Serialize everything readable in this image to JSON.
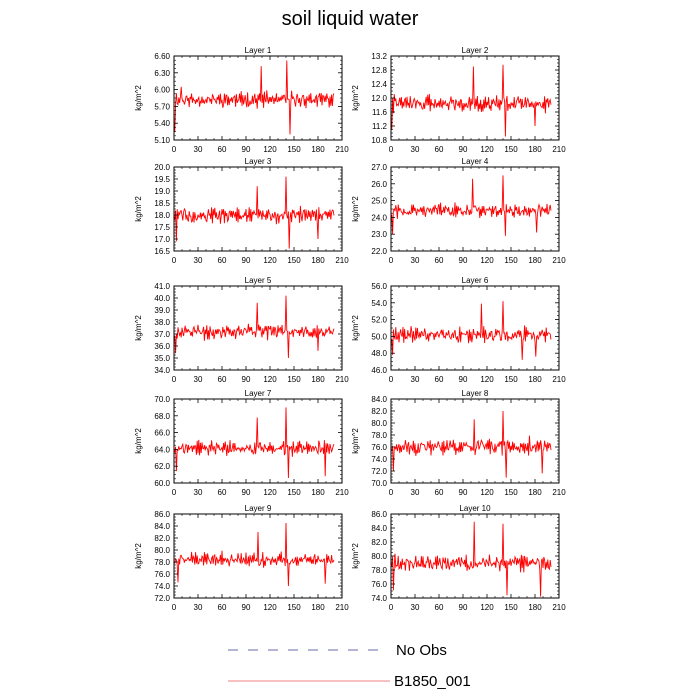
{
  "title": "soil liquid water",
  "legend": [
    {
      "label": "No Obs",
      "color": "#6a6aa8",
      "style": "dashed"
    },
    {
      "label": "B1850_001",
      "color": "#f08080",
      "style": "solid"
    }
  ],
  "chart_data": [
    {
      "type": "line",
      "title": "Layer 1",
      "ylabel": "kg/m^2",
      "xlim": [
        0,
        210
      ],
      "ylim": [
        5.1,
        6.6
      ],
      "xticks": [
        "0",
        "30",
        "60",
        "90",
        "120",
        "150",
        "180",
        "210"
      ],
      "yticks": [
        "5.10",
        "5.40",
        "5.70",
        "6.00",
        "6.30",
        "6.60"
      ],
      "series": [
        {
          "color": "#ff0000",
          "x_start": 1,
          "x_end": 200,
          "seed": 11,
          "mean": 5.82,
          "amp": 0.18,
          "spikes": [
            [
              1,
              5.25
            ],
            [
              9,
              6.05
            ],
            [
              109,
              6.42
            ],
            [
              141,
              6.52
            ],
            [
              145,
              5.2
            ]
          ]
        }
      ]
    },
    {
      "type": "line",
      "title": "Layer 2",
      "ylabel": "kg/m^2",
      "xlim": [
        0,
        210
      ],
      "ylim": [
        10.8,
        13.2
      ],
      "xticks": [
        "0",
        "30",
        "60",
        "90",
        "120",
        "150",
        "180",
        "210"
      ],
      "yticks": [
        "10.8",
        "11.2",
        "11.6",
        "12.0",
        "12.4",
        "12.8",
        "13.2"
      ],
      "series": [
        {
          "color": "#ff0000",
          "x_start": 1,
          "x_end": 200,
          "seed": 22,
          "mean": 11.85,
          "amp": 0.3,
          "spikes": [
            [
              1,
              11.1
            ],
            [
              103,
              12.9
            ],
            [
              140,
              12.95
            ],
            [
              143,
              10.9
            ],
            [
              180,
              11.2
            ]
          ]
        }
      ]
    },
    {
      "type": "line",
      "title": "Layer 3",
      "ylabel": "kg/m^2",
      "xlim": [
        0,
        210
      ],
      "ylim": [
        16.5,
        20.0
      ],
      "xticks": [
        "0",
        "30",
        "60",
        "90",
        "120",
        "150",
        "180",
        "210"
      ],
      "yticks": [
        "16.5",
        "17.0",
        "17.5",
        "18.0",
        "18.5",
        "19.0",
        "19.5",
        "20.0"
      ],
      "series": [
        {
          "color": "#ff0000",
          "x_start": 1,
          "x_end": 200,
          "seed": 33,
          "mean": 18.0,
          "amp": 0.45,
          "spikes": [
            [
              3,
              16.9
            ],
            [
              104,
              19.2
            ],
            [
              140,
              19.6
            ],
            [
              144,
              16.6
            ],
            [
              180,
              17.0
            ]
          ]
        }
      ]
    },
    {
      "type": "line",
      "title": "Layer 4",
      "ylabel": "kg/m^2",
      "xlim": [
        0,
        210
      ],
      "ylim": [
        22.0,
        27.0
      ],
      "xticks": [
        "0",
        "30",
        "60",
        "90",
        "120",
        "150",
        "180",
        "210"
      ],
      "yticks": [
        "22.0",
        "23.0",
        "24.0",
        "25.0",
        "26.0",
        "27.0"
      ],
      "series": [
        {
          "color": "#ff0000",
          "x_start": 1,
          "x_end": 200,
          "seed": 44,
          "mean": 24.4,
          "amp": 0.55,
          "spikes": [
            [
              2,
              23.0
            ],
            [
              102,
              26.3
            ],
            [
              140,
              26.5
            ],
            [
              143,
              22.9
            ],
            [
              182,
              23.1
            ]
          ]
        }
      ]
    },
    {
      "type": "line",
      "title": "Layer 5",
      "ylabel": "kg/m^2",
      "xlim": [
        0,
        210
      ],
      "ylim": [
        34.0,
        41.0
      ],
      "xticks": [
        "0",
        "30",
        "60",
        "90",
        "120",
        "150",
        "180",
        "210"
      ],
      "yticks": [
        "34.0",
        "35.0",
        "36.0",
        "37.0",
        "38.0",
        "39.0",
        "40.0",
        "41.0"
      ],
      "series": [
        {
          "color": "#ff0000",
          "x_start": 1,
          "x_end": 200,
          "seed": 55,
          "mean": 37.2,
          "amp": 0.8,
          "spikes": [
            [
              2,
              35.4
            ],
            [
              104,
              39.6
            ],
            [
              140,
              40.2
            ],
            [
              143,
              35.0
            ],
            [
              180,
              35.6
            ]
          ]
        }
      ]
    },
    {
      "type": "line",
      "title": "Layer 6",
      "ylabel": "kg/m^2",
      "xlim": [
        0,
        210
      ],
      "ylim": [
        46.0,
        56.0
      ],
      "xticks": [
        "0",
        "30",
        "60",
        "90",
        "120",
        "150",
        "180",
        "210"
      ],
      "yticks": [
        "46.0",
        "48.0",
        "50.0",
        "52.0",
        "54.0",
        "56.0"
      ],
      "series": [
        {
          "color": "#ff0000",
          "x_start": 1,
          "x_end": 200,
          "seed": 66,
          "mean": 50.2,
          "amp": 1.2,
          "spikes": [
            [
              2,
              47.8
            ],
            [
              113,
              53.9
            ],
            [
              140,
              54.2
            ],
            [
              164,
              47.2
            ],
            [
              181,
              47.6
            ]
          ]
        }
      ]
    },
    {
      "type": "line",
      "title": "Layer 7",
      "ylabel": "kg/m^2",
      "xlim": [
        0,
        210
      ],
      "ylim": [
        60.0,
        70.0
      ],
      "xticks": [
        "0",
        "30",
        "60",
        "90",
        "120",
        "150",
        "180",
        "210"
      ],
      "yticks": [
        "60.0",
        "62.0",
        "64.0",
        "66.0",
        "68.0",
        "70.0"
      ],
      "series": [
        {
          "color": "#ff0000",
          "x_start": 1,
          "x_end": 200,
          "seed": 77,
          "mean": 64.1,
          "amp": 1.1,
          "spikes": [
            [
              3,
              61.4
            ],
            [
              104,
              67.8
            ],
            [
              140,
              69.0
            ],
            [
              143,
              60.6
            ],
            [
              189,
              60.8
            ]
          ]
        }
      ]
    },
    {
      "type": "line",
      "title": "Layer 8",
      "ylabel": "kg/m^2",
      "xlim": [
        0,
        210
      ],
      "ylim": [
        70.0,
        84.0
      ],
      "xticks": [
        "0",
        "30",
        "60",
        "90",
        "120",
        "150",
        "180",
        "210"
      ],
      "yticks": [
        "70.0",
        "72.0",
        "74.0",
        "76.0",
        "78.0",
        "80.0",
        "82.0",
        "84.0"
      ],
      "series": [
        {
          "color": "#ff0000",
          "x_start": 1,
          "x_end": 200,
          "seed": 88,
          "mean": 76.0,
          "amp": 1.6,
          "spikes": [
            [
              3,
              72.0
            ],
            [
              104,
              80.6
            ],
            [
              140,
              82.0
            ],
            [
              144,
              70.9
            ],
            [
              189,
              71.6
            ]
          ]
        }
      ]
    },
    {
      "type": "line",
      "title": "Layer 9",
      "ylabel": "kg/m^2",
      "xlim": [
        0,
        210
      ],
      "ylim": [
        72.0,
        86.0
      ],
      "xticks": [
        "0",
        "30",
        "60",
        "90",
        "120",
        "150",
        "180",
        "210"
      ],
      "yticks": [
        "72.0",
        "74.0",
        "76.0",
        "78.0",
        "80.0",
        "82.0",
        "84.0",
        "86.0"
      ],
      "series": [
        {
          "color": "#ff0000",
          "x_start": 1,
          "x_end": 200,
          "seed": 99,
          "mean": 78.4,
          "amp": 1.5,
          "spikes": [
            [
              5,
              74.6
            ],
            [
              105,
              83.0
            ],
            [
              140,
              84.5
            ],
            [
              143,
              74.0
            ],
            [
              189,
              74.4
            ]
          ]
        }
      ]
    },
    {
      "type": "line",
      "title": "Layer 10",
      "ylabel": "kg/m^2",
      "xlim": [
        0,
        210
      ],
      "ylim": [
        74.0,
        86.0
      ],
      "xticks": [
        "0",
        "30",
        "60",
        "90",
        "120",
        "150",
        "180",
        "210"
      ],
      "yticks": [
        "74.0",
        "76.0",
        "78.0",
        "80.0",
        "82.0",
        "84.0",
        "86.0"
      ],
      "series": [
        {
          "color": "#ff0000",
          "x_start": 1,
          "x_end": 200,
          "seed": 111,
          "mean": 79.0,
          "amp": 1.4,
          "spikes": [
            [
              3,
              75.1
            ],
            [
              104,
              84.9
            ],
            [
              140,
              84.6
            ],
            [
              145,
              74.4
            ],
            [
              187,
              74.2
            ]
          ]
        }
      ]
    }
  ]
}
